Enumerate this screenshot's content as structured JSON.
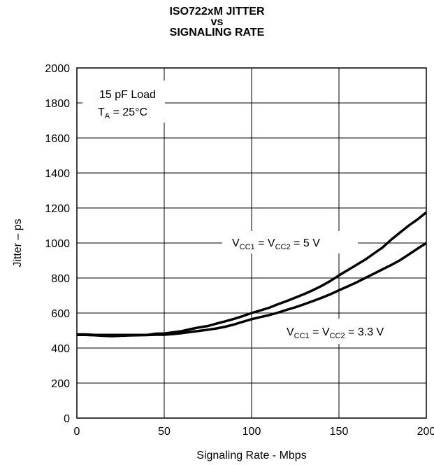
{
  "chart_data": {
    "type": "line",
    "title_lines": [
      "ISO722xM JITTER",
      "vs",
      "SIGNALING RATE"
    ],
    "xlabel": "Signaling Rate - Mbps",
    "ylabel": "Jitter – ps",
    "xlim": [
      0,
      200
    ],
    "ylim": [
      0,
      2000
    ],
    "xticks": [
      0,
      50,
      100,
      150,
      200
    ],
    "yticks": [
      0,
      200,
      400,
      600,
      800,
      1000,
      1200,
      1400,
      1600,
      1800,
      2000
    ],
    "grid": true,
    "conditions": {
      "line1": "15 pF Load",
      "line2_main": "T",
      "line2_sub": "A",
      "line2_rest": " = 25°C"
    },
    "series": [
      {
        "label_parts": {
          "v1": "V",
          "s1": "CC1",
          "mid": " = V",
          "s2": "CC2",
          "end": " = 5 V"
        },
        "x": [
          0,
          5,
          10,
          20,
          30,
          40,
          45,
          50,
          55,
          60,
          65,
          70,
          75,
          80,
          85,
          90,
          95,
          100,
          105,
          110,
          115,
          120,
          125,
          130,
          135,
          140,
          145,
          150,
          155,
          160,
          165,
          170,
          175,
          180,
          185,
          190,
          195,
          200
        ],
        "y": [
          478,
          478,
          475,
          475,
          475,
          475,
          482,
          483,
          490,
          497,
          508,
          518,
          526,
          540,
          553,
          567,
          583,
          600,
          615,
          630,
          650,
          668,
          688,
          708,
          730,
          755,
          783,
          815,
          845,
          875,
          905,
          940,
          975,
          1020,
          1060,
          1100,
          1135,
          1175
        ]
      },
      {
        "label_parts": {
          "v1": "V",
          "s1": "CC1",
          "mid": " = V",
          "s2": "CC2",
          "end": " = 3.3 V"
        },
        "x": [
          0,
          5,
          10,
          15,
          20,
          25,
          30,
          40,
          45,
          50,
          55,
          60,
          65,
          70,
          75,
          80,
          85,
          90,
          95,
          100,
          105,
          110,
          115,
          120,
          125,
          130,
          135,
          140,
          145,
          150,
          155,
          160,
          165,
          170,
          175,
          180,
          185,
          190,
          195,
          200
        ],
        "y": [
          475,
          475,
          473,
          470,
          468,
          470,
          472,
          474,
          476,
          476,
          480,
          485,
          492,
          498,
          505,
          512,
          522,
          535,
          550,
          565,
          577,
          588,
          602,
          618,
          633,
          650,
          668,
          687,
          707,
          730,
          752,
          775,
          800,
          825,
          850,
          875,
          902,
          935,
          968,
          1000
        ]
      }
    ]
  }
}
